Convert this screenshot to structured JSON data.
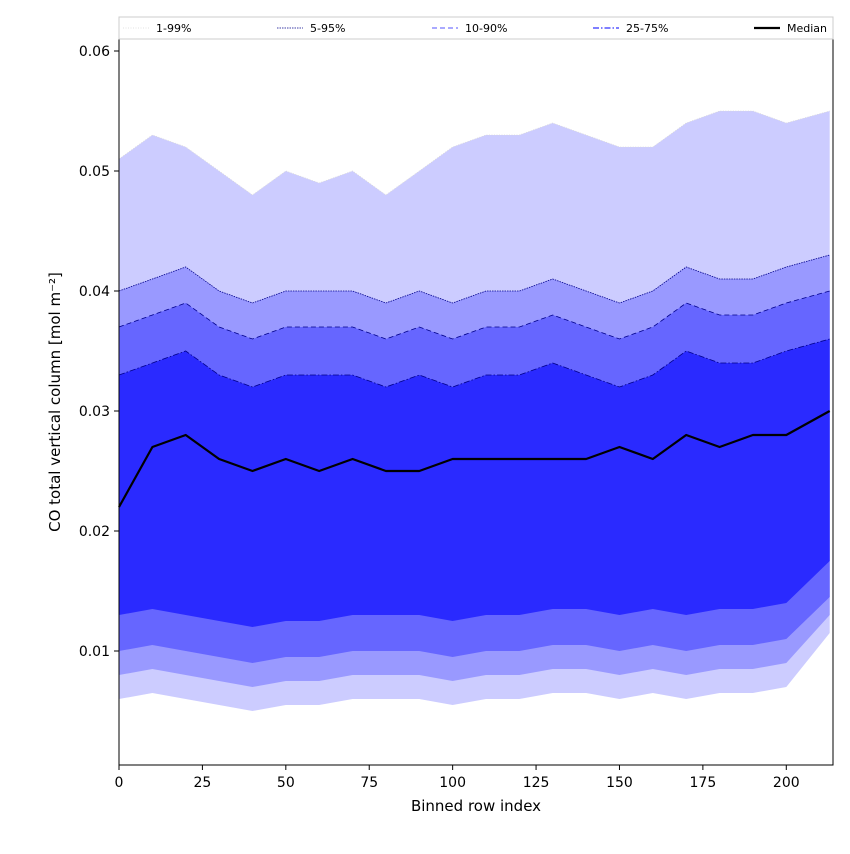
{
  "chart_data": {
    "type": "area",
    "title": "",
    "xlabel": "Binned row index",
    "ylabel": "CO total vertical column [mol m⁻²]",
    "xlim": [
      0,
      214
    ],
    "ylim": [
      0.0005,
      0.061
    ],
    "xticks": [
      0,
      25,
      50,
      75,
      100,
      125,
      150,
      175,
      200
    ],
    "yticks": [
      0.01,
      0.02,
      0.03,
      0.04,
      0.05,
      0.06
    ],
    "ytick_labels": [
      "0.01",
      "0.02",
      "0.03",
      "0.04",
      "0.05",
      "0.06"
    ],
    "grid": false,
    "legend_position": "top",
    "x": [
      0,
      10,
      20,
      30,
      40,
      50,
      60,
      70,
      80,
      90,
      100,
      110,
      120,
      130,
      140,
      150,
      160,
      170,
      180,
      190,
      200,
      213
    ],
    "bands": [
      {
        "name": "1-99%",
        "color": "#ccccff",
        "line_color": "#d9d9d9",
        "upper": [
          0.051,
          0.053,
          0.052,
          0.05,
          0.048,
          0.05,
          0.049,
          0.05,
          0.048,
          0.05,
          0.052,
          0.053,
          0.053,
          0.054,
          0.053,
          0.052,
          0.052,
          0.054,
          0.055,
          0.055,
          0.054,
          0.055
        ],
        "lower": [
          0.006,
          0.0065,
          0.006,
          0.0055,
          0.005,
          0.0055,
          0.0055,
          0.006,
          0.006,
          0.006,
          0.0055,
          0.006,
          0.006,
          0.0065,
          0.0065,
          0.006,
          0.0065,
          0.006,
          0.0065,
          0.0065,
          0.007,
          0.0115
        ]
      },
      {
        "name": "5-95%",
        "color": "#9999ff",
        "line_color": "#00008b",
        "upper": [
          0.04,
          0.041,
          0.042,
          0.04,
          0.039,
          0.04,
          0.04,
          0.04,
          0.039,
          0.04,
          0.039,
          0.04,
          0.04,
          0.041,
          0.04,
          0.039,
          0.04,
          0.042,
          0.041,
          0.041,
          0.042,
          0.043
        ],
        "lower": [
          0.008,
          0.0085,
          0.008,
          0.0075,
          0.007,
          0.0075,
          0.0075,
          0.008,
          0.008,
          0.008,
          0.0075,
          0.008,
          0.008,
          0.0085,
          0.0085,
          0.008,
          0.0085,
          0.008,
          0.0085,
          0.0085,
          0.009,
          0.013
        ]
      },
      {
        "name": "10-90%",
        "color": "#6666ff",
        "line_color": "#00008b",
        "upper": [
          0.037,
          0.038,
          0.039,
          0.037,
          0.036,
          0.037,
          0.037,
          0.037,
          0.036,
          0.037,
          0.036,
          0.037,
          0.037,
          0.038,
          0.037,
          0.036,
          0.037,
          0.039,
          0.038,
          0.038,
          0.039,
          0.04
        ],
        "lower": [
          0.01,
          0.0105,
          0.01,
          0.0095,
          0.009,
          0.0095,
          0.0095,
          0.01,
          0.01,
          0.01,
          0.0095,
          0.01,
          0.01,
          0.0105,
          0.0105,
          0.01,
          0.0105,
          0.01,
          0.0105,
          0.0105,
          0.011,
          0.0145
        ]
      },
      {
        "name": "25-75%",
        "color": "#2a2aff",
        "line_color": "#00008b",
        "upper": [
          0.033,
          0.034,
          0.035,
          0.033,
          0.032,
          0.033,
          0.033,
          0.033,
          0.032,
          0.033,
          0.032,
          0.033,
          0.033,
          0.034,
          0.033,
          0.032,
          0.033,
          0.035,
          0.034,
          0.034,
          0.035,
          0.036
        ],
        "lower": [
          0.013,
          0.0135,
          0.013,
          0.0125,
          0.012,
          0.0125,
          0.0125,
          0.013,
          0.013,
          0.013,
          0.0125,
          0.013,
          0.013,
          0.0135,
          0.0135,
          0.013,
          0.0135,
          0.013,
          0.0135,
          0.0135,
          0.014,
          0.0175
        ]
      }
    ],
    "median": {
      "name": "Median",
      "color": "#000000",
      "values": [
        0.022,
        0.027,
        0.028,
        0.026,
        0.025,
        0.026,
        0.025,
        0.026,
        0.025,
        0.025,
        0.026,
        0.026,
        0.026,
        0.026,
        0.026,
        0.027,
        0.026,
        0.028,
        0.027,
        0.028,
        0.028,
        0.03
      ]
    },
    "legend": [
      "1-99%",
      "5-95%",
      "10-90%",
      "25-75%",
      "Median"
    ]
  }
}
